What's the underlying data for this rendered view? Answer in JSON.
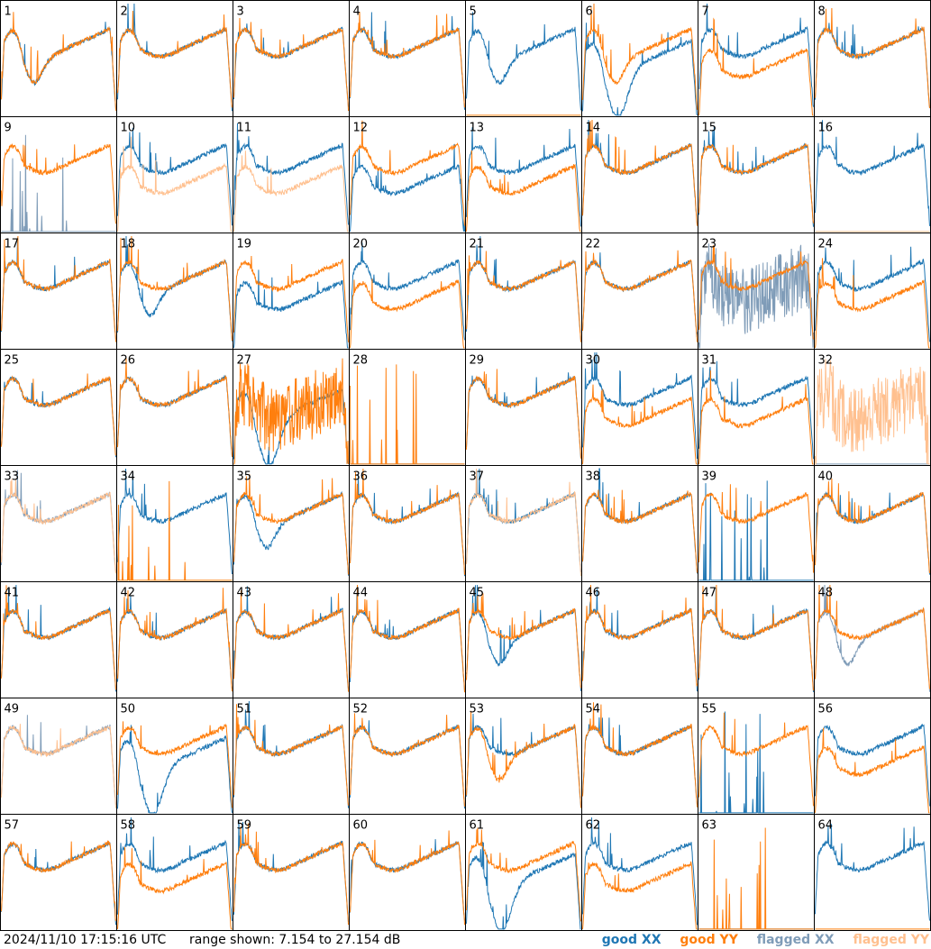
{
  "timestamp": "2024/11/10 17:15:16 UTC",
  "range_text": "range shown: 7.154 to 27.154 dB",
  "legend": {
    "good_xx": "good XX",
    "good_yy": "good YY",
    "flagged_xx": "flagged XX",
    "flagged_yy": "flagged YY"
  },
  "colors": {
    "good_xx": "#1f77b4",
    "good_yy": "#ff7f0e",
    "flagged_xx": "#7f9cb8",
    "flagged_yy": "#ffc08f",
    "grid": "#000000"
  },
  "chart_data": {
    "type": "line",
    "grid": {
      "rows": 8,
      "cols": 8
    },
    "ylim_db": [
      7.154,
      27.154
    ],
    "panels": [
      {
        "id": 1,
        "xx": "good",
        "yy": "good",
        "xx_shape": "dip_recover",
        "yy_shape": "dip_recover"
      },
      {
        "id": 2,
        "xx": "good",
        "yy": "good",
        "xx_shape": "bandpass",
        "yy_shape": "bandpass"
      },
      {
        "id": 3,
        "xx": "good",
        "yy": "good",
        "xx_shape": "bandpass",
        "yy_shape": "bandpass"
      },
      {
        "id": 4,
        "xx": "good",
        "yy": "good",
        "xx_shape": "bandpass",
        "yy_shape": "bandpass"
      },
      {
        "id": 5,
        "xx": "good",
        "yy": "good",
        "xx_shape": "dip_recover",
        "yy_shape": "flat_zero"
      },
      {
        "id": 6,
        "xx": "good",
        "yy": "good",
        "xx_shape": "deep_dip",
        "yy_shape": "dip_recover"
      },
      {
        "id": 7,
        "xx": "good",
        "yy": "good",
        "xx_shape": "bandpass",
        "yy_shape": "low_bandpass"
      },
      {
        "id": 8,
        "xx": "good",
        "yy": "good",
        "xx_shape": "bandpass",
        "yy_shape": "bandpass"
      },
      {
        "id": 9,
        "xx": "flagged",
        "yy": "good",
        "xx_shape": "spikes_zero",
        "yy_shape": "bandpass"
      },
      {
        "id": 10,
        "xx": "good",
        "yy": "flagged",
        "xx_shape": "bandpass",
        "yy_shape": "low_bandpass"
      },
      {
        "id": 11,
        "xx": "good",
        "yy": "flagged",
        "xx_shape": "bandpass",
        "yy_shape": "low_bandpass"
      },
      {
        "id": 12,
        "xx": "good",
        "yy": "good",
        "xx_shape": "low_bandpass",
        "yy_shape": "bandpass"
      },
      {
        "id": 13,
        "xx": "good",
        "yy": "good",
        "xx_shape": "bandpass",
        "yy_shape": "low_bandpass"
      },
      {
        "id": 14,
        "xx": "good",
        "yy": "good",
        "xx_shape": "bandpass",
        "yy_shape": "bandpass"
      },
      {
        "id": 15,
        "xx": "good",
        "yy": "good",
        "xx_shape": "bandpass",
        "yy_shape": "bandpass"
      },
      {
        "id": 16,
        "xx": "good",
        "yy": "flagged",
        "xx_shape": "bandpass",
        "yy_shape": "flat_zero"
      },
      {
        "id": 17,
        "xx": "good",
        "yy": "good",
        "xx_shape": "bandpass",
        "yy_shape": "bandpass"
      },
      {
        "id": 18,
        "xx": "good",
        "yy": "good",
        "xx_shape": "dip_recover",
        "yy_shape": "bandpass"
      },
      {
        "id": 19,
        "xx": "good",
        "yy": "good",
        "xx_shape": "low_bandpass",
        "yy_shape": "bandpass"
      },
      {
        "id": 20,
        "xx": "good",
        "yy": "good",
        "xx_shape": "bandpass",
        "yy_shape": "low_bandpass"
      },
      {
        "id": 21,
        "xx": "good",
        "yy": "good",
        "xx_shape": "bandpass",
        "yy_shape": "bandpass"
      },
      {
        "id": 22,
        "xx": "good",
        "yy": "good",
        "xx_shape": "bandpass",
        "yy_shape": "bandpass"
      },
      {
        "id": 23,
        "xx": "flagged",
        "yy": "good",
        "xx_shape": "noisy",
        "yy_shape": "bandpass"
      },
      {
        "id": 24,
        "xx": "good",
        "yy": "good",
        "xx_shape": "bandpass",
        "yy_shape": "low_bandpass"
      },
      {
        "id": 25,
        "xx": "good",
        "yy": "good",
        "xx_shape": "bandpass",
        "yy_shape": "bandpass"
      },
      {
        "id": 26,
        "xx": "good",
        "yy": "good",
        "xx_shape": "bandpass",
        "yy_shape": "bandpass"
      },
      {
        "id": 27,
        "xx": "good",
        "yy": "good",
        "xx_shape": "deep_dip",
        "yy_shape": "noisy"
      },
      {
        "id": 28,
        "xx": "good",
        "yy": "good",
        "xx_shape": "flat_zero",
        "yy_shape": "spikes_zero"
      },
      {
        "id": 29,
        "xx": "good",
        "yy": "good",
        "xx_shape": "bandpass",
        "yy_shape": "bandpass"
      },
      {
        "id": 30,
        "xx": "good",
        "yy": "good",
        "xx_shape": "bandpass",
        "yy_shape": "low_bandpass"
      },
      {
        "id": 31,
        "xx": "good",
        "yy": "good",
        "xx_shape": "bandpass",
        "yy_shape": "low_bandpass"
      },
      {
        "id": 32,
        "xx": "flagged",
        "yy": "flagged",
        "xx_shape": "flat_zero",
        "yy_shape": "noisy"
      },
      {
        "id": 33,
        "xx": "flagged",
        "yy": "flagged",
        "xx_shape": "bandpass",
        "yy_shape": "bandpass"
      },
      {
        "id": 34,
        "xx": "good",
        "yy": "good",
        "xx_shape": "bandpass",
        "yy_shape": "spikes_zero"
      },
      {
        "id": 35,
        "xx": "good",
        "yy": "good",
        "xx_shape": "dip_recover",
        "yy_shape": "bandpass"
      },
      {
        "id": 36,
        "xx": "good",
        "yy": "good",
        "xx_shape": "bandpass",
        "yy_shape": "bandpass"
      },
      {
        "id": 37,
        "xx": "good",
        "yy": "flagged",
        "xx_shape": "bandpass",
        "yy_shape": "bandpass"
      },
      {
        "id": 38,
        "xx": "good",
        "yy": "good",
        "xx_shape": "bandpass",
        "yy_shape": "bandpass"
      },
      {
        "id": 39,
        "xx": "good",
        "yy": "good",
        "xx_shape": "spikes_zero",
        "yy_shape": "bandpass"
      },
      {
        "id": 40,
        "xx": "good",
        "yy": "good",
        "xx_shape": "bandpass",
        "yy_shape": "bandpass"
      },
      {
        "id": 41,
        "xx": "good",
        "yy": "good",
        "xx_shape": "bandpass",
        "yy_shape": "bandpass"
      },
      {
        "id": 42,
        "xx": "good",
        "yy": "good",
        "xx_shape": "bandpass",
        "yy_shape": "bandpass"
      },
      {
        "id": 43,
        "xx": "good",
        "yy": "good",
        "xx_shape": "bandpass",
        "yy_shape": "bandpass"
      },
      {
        "id": 44,
        "xx": "good",
        "yy": "good",
        "xx_shape": "bandpass",
        "yy_shape": "bandpass"
      },
      {
        "id": 45,
        "xx": "good",
        "yy": "good",
        "xx_shape": "dip_recover",
        "yy_shape": "bandpass"
      },
      {
        "id": 46,
        "xx": "good",
        "yy": "good",
        "xx_shape": "bandpass",
        "yy_shape": "bandpass"
      },
      {
        "id": 47,
        "xx": "good",
        "yy": "good",
        "xx_shape": "bandpass",
        "yy_shape": "bandpass"
      },
      {
        "id": 48,
        "xx": "flagged",
        "yy": "good",
        "xx_shape": "dip_recover",
        "yy_shape": "bandpass"
      },
      {
        "id": 49,
        "xx": "flagged",
        "yy": "flagged",
        "xx_shape": "bandpass",
        "yy_shape": "bandpass"
      },
      {
        "id": 50,
        "xx": "good",
        "yy": "good",
        "xx_shape": "deep_dip",
        "yy_shape": "bandpass"
      },
      {
        "id": 51,
        "xx": "good",
        "yy": "good",
        "xx_shape": "bandpass",
        "yy_shape": "bandpass"
      },
      {
        "id": 52,
        "xx": "good",
        "yy": "good",
        "xx_shape": "bandpass",
        "yy_shape": "bandpass"
      },
      {
        "id": 53,
        "xx": "good",
        "yy": "good",
        "xx_shape": "bandpass",
        "yy_shape": "dip_recover"
      },
      {
        "id": 54,
        "xx": "good",
        "yy": "good",
        "xx_shape": "bandpass",
        "yy_shape": "bandpass"
      },
      {
        "id": 55,
        "xx": "good",
        "yy": "good",
        "xx_shape": "spikes_zero",
        "yy_shape": "bandpass"
      },
      {
        "id": 56,
        "xx": "good",
        "yy": "good",
        "xx_shape": "bandpass",
        "yy_shape": "low_bandpass"
      },
      {
        "id": 57,
        "xx": "good",
        "yy": "good",
        "xx_shape": "bandpass",
        "yy_shape": "bandpass"
      },
      {
        "id": 58,
        "xx": "good",
        "yy": "good",
        "xx_shape": "bandpass",
        "yy_shape": "low_bandpass"
      },
      {
        "id": 59,
        "xx": "good",
        "yy": "good",
        "xx_shape": "bandpass",
        "yy_shape": "bandpass"
      },
      {
        "id": 60,
        "xx": "good",
        "yy": "good",
        "xx_shape": "bandpass",
        "yy_shape": "bandpass"
      },
      {
        "id": 61,
        "xx": "good",
        "yy": "good",
        "xx_shape": "deep_dip",
        "yy_shape": "bandpass"
      },
      {
        "id": 62,
        "xx": "good",
        "yy": "good",
        "xx_shape": "bandpass",
        "yy_shape": "low_bandpass"
      },
      {
        "id": 63,
        "xx": "good",
        "yy": "good",
        "xx_shape": "flat_zero",
        "yy_shape": "spikes_zero"
      },
      {
        "id": 64,
        "xx": "good",
        "yy": "good",
        "xx_shape": "bandpass",
        "yy_shape": "flat_zero"
      }
    ]
  }
}
